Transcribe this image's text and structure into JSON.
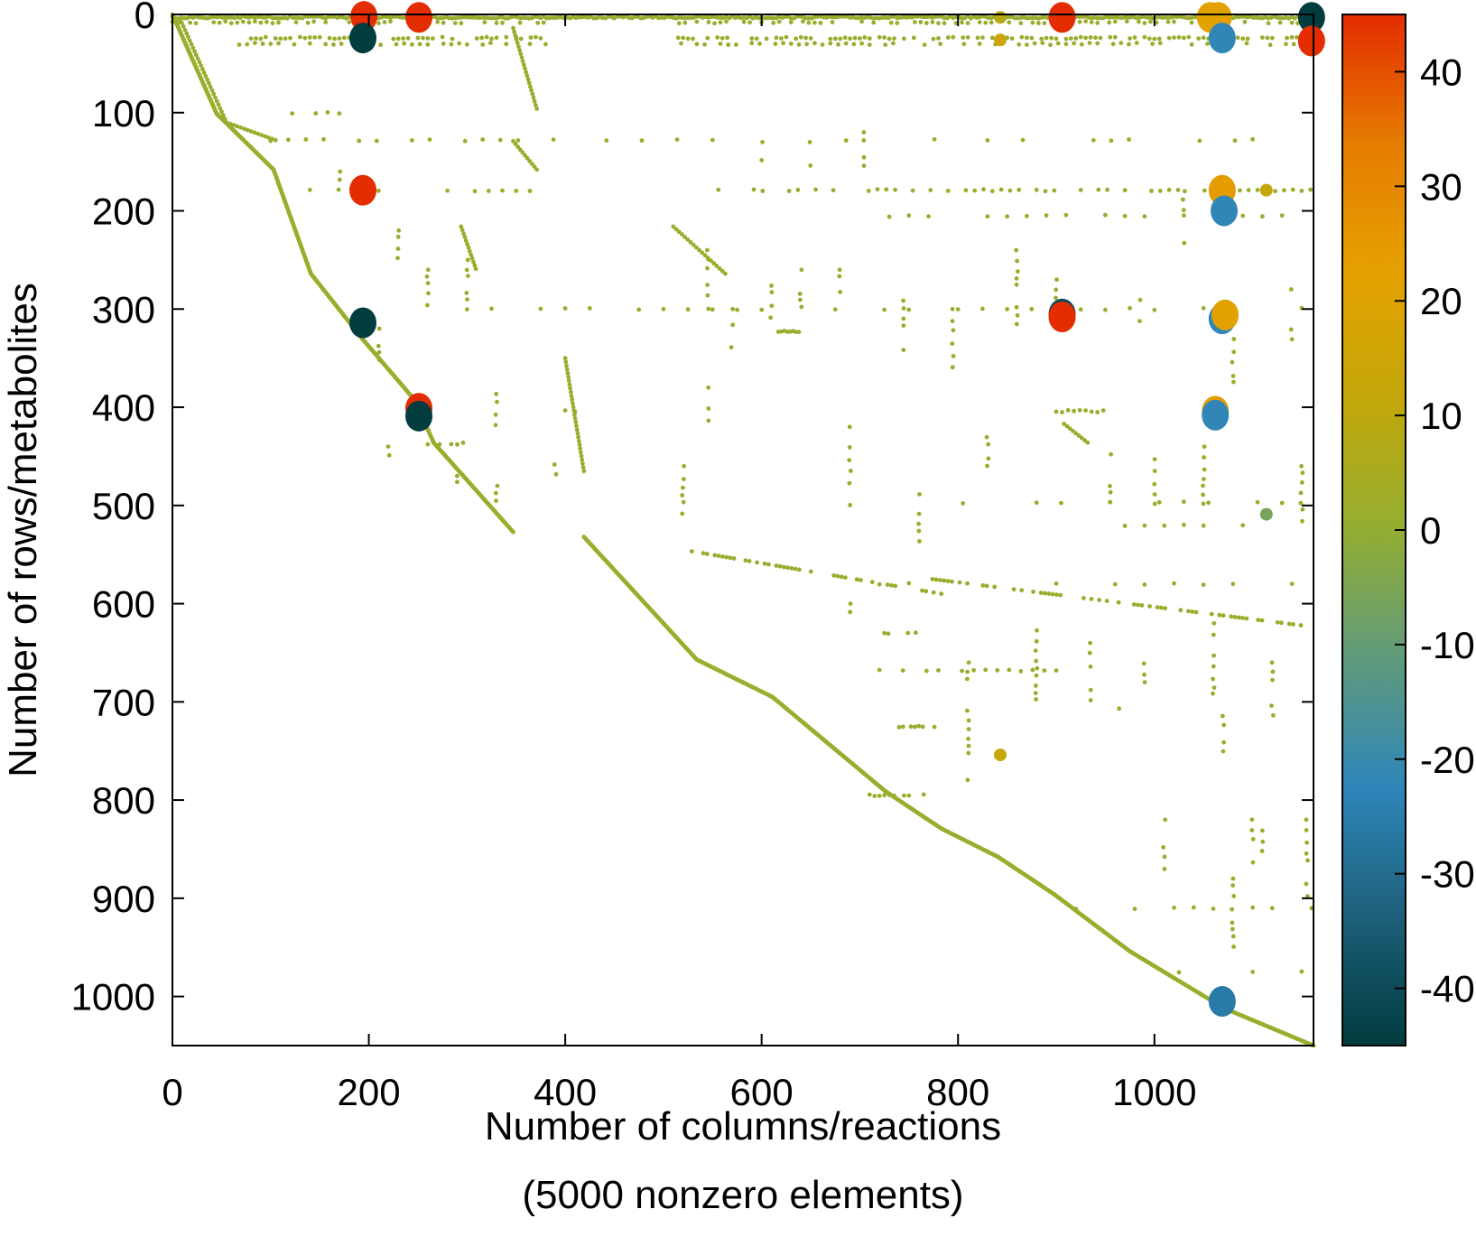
{
  "chart_data": {
    "type": "scatter",
    "subtype": "sparsity-pattern",
    "title": "",
    "xlabel": "Number of columns/reactions",
    "xlabel_line2": "(5000 nonzero elements)",
    "ylabel": "Number of rows/metabolites",
    "xlim": [
      0,
      1162
    ],
    "ylim": [
      1050,
      0
    ],
    "y_reversed": true,
    "x_ticks": [
      0,
      200,
      400,
      600,
      800,
      1000
    ],
    "y_ticks": [
      0,
      100,
      200,
      300,
      400,
      500,
      600,
      700,
      800,
      900,
      1000
    ],
    "grid": false,
    "colorbar": {
      "position": "right",
      "clim": [
        -45,
        45
      ],
      "ticks": [
        40,
        30,
        20,
        10,
        0,
        -10,
        -20,
        -30,
        -40
      ],
      "colormap": [
        "#013c3f",
        "#1d5f79",
        "#2e86ba",
        "#5f9a7c",
        "#93ae33",
        "#c2a70a",
        "#e5a100",
        "#e57c00",
        "#e32c00"
      ]
    },
    "small_dot_color": "#9aad2d",
    "diagonal_knots": [
      [
        0,
        0
      ],
      [
        45,
        101
      ],
      [
        103,
        158
      ],
      [
        141,
        264
      ],
      [
        194,
        331
      ],
      [
        247,
        393
      ],
      [
        266,
        436
      ],
      [
        347,
        527
      ],
      null,
      [
        419,
        532
      ],
      [
        534,
        657
      ],
      [
        611,
        695
      ],
      [
        726,
        791
      ],
      [
        783,
        829
      ],
      [
        841,
        858
      ],
      [
        898,
        896
      ],
      [
        975,
        954
      ],
      [
        1071,
        1012
      ],
      [
        1162,
        1050
      ]
    ],
    "line_segments": [
      [
        [
          8,
          5
        ],
        [
          55,
          110
        ],
        [
          105,
          128
        ]
      ],
      [
        [
          347,
          14
        ],
        [
          371,
          96
        ]
      ],
      [
        [
          347,
          129
        ],
        [
          371,
          158
        ]
      ],
      [
        [
          400,
          350
        ],
        [
          419,
          465
        ]
      ],
      [
        [
          510,
          216
        ],
        [
          563,
          264
        ]
      ],
      [
        [
          294,
          216
        ],
        [
          309,
          259
        ]
      ],
      [
        [
          908,
          417
        ],
        [
          932,
          436
        ]
      ],
      [
        [
          525,
          546
        ],
        [
          783,
          590
        ]
      ],
      [
        [
          774,
          575
        ],
        [
          1157,
          623
        ]
      ]
    ],
    "row_bands": [
      [
        3,
        0,
        1162,
        3
      ],
      [
        8,
        0,
        380,
        6
      ],
      [
        8,
        510,
        1162,
        6
      ],
      [
        24,
        70,
        375,
        5
      ],
      [
        24,
        510,
        1162,
        5
      ],
      [
        30,
        60,
        380,
        8
      ],
      [
        30,
        510,
        1162,
        8
      ],
      [
        100,
        110,
        180,
        12
      ],
      [
        128,
        100,
        600,
        18
      ],
      [
        128,
        650,
        1100,
        18
      ],
      [
        179,
        140,
        370,
        14
      ],
      [
        179,
        520,
        1160,
        9
      ],
      [
        205,
        730,
        1160,
        20
      ],
      [
        300,
        300,
        1160,
        25
      ],
      [
        323,
        617,
        640,
        3
      ],
      [
        404,
        400,
        420,
        10
      ],
      [
        404,
        900,
        950,
        6
      ],
      [
        437,
        260,
        300,
        6
      ],
      [
        497,
        780,
        1160,
        25
      ],
      [
        520,
        930,
        1120,
        20
      ],
      [
        580,
        720,
        1160,
        30
      ],
      [
        630,
        725,
        760,
        4
      ],
      [
        668,
        720,
        900,
        12
      ],
      [
        725,
        740,
        780,
        4
      ],
      [
        795,
        710,
        765,
        5
      ],
      [
        910,
        900,
        1160,
        20
      ],
      [
        975,
        1000,
        1160,
        25
      ]
    ],
    "column_runs": [
      [
        520,
        460,
        510
      ],
      [
        545,
        240,
        300
      ],
      [
        610,
        250,
        320
      ],
      [
        640,
        260,
        300
      ],
      [
        680,
        260,
        300
      ],
      [
        690,
        420,
        500
      ],
      [
        705,
        120,
        160
      ],
      [
        745,
        280,
        350
      ],
      [
        760,
        480,
        540
      ],
      [
        795,
        300,
        380
      ],
      [
        810,
        660,
        790
      ],
      [
        830,
        420,
        480
      ],
      [
        860,
        240,
        320
      ],
      [
        880,
        620,
        700
      ],
      [
        900,
        270,
        320
      ],
      [
        935,
        640,
        700
      ],
      [
        955,
        430,
        500
      ],
      [
        965,
        700,
        760
      ],
      [
        985,
        280,
        320
      ],
      [
        990,
        640,
        690
      ],
      [
        1000,
        440,
        520
      ],
      [
        1010,
        820,
        880
      ],
      [
        1030,
        180,
        260
      ],
      [
        1050,
        440,
        500
      ],
      [
        1060,
        620,
        700
      ],
      [
        1080,
        300,
        380
      ],
      [
        1100,
        820,
        880
      ],
      [
        1120,
        660,
        720
      ],
      [
        1140,
        280,
        340
      ],
      [
        1150,
        460,
        520
      ],
      [
        1155,
        820,
        900
      ],
      [
        390,
        430,
        470
      ],
      [
        330,
        380,
        420
      ],
      [
        300,
        250,
        300
      ],
      [
        260,
        260,
        300
      ],
      [
        230,
        220,
        260
      ],
      [
        210,
        320,
        360
      ],
      [
        220,
        440,
        460
      ],
      [
        290,
        470,
        500
      ],
      [
        330,
        480,
        500
      ],
      [
        170,
        160,
        200
      ],
      [
        545,
        380,
        420
      ],
      [
        570,
        300,
        340
      ],
      [
        600,
        130,
        160
      ],
      [
        650,
        130,
        160
      ],
      [
        690,
        600,
        650
      ],
      [
        1080,
        880,
        960
      ],
      [
        1070,
        700,
        760
      ],
      [
        1110,
        800,
        860
      ]
    ],
    "large_values": [
      {
        "col": 195,
        "row": 2,
        "value": 45
      },
      {
        "col": 251,
        "row": 3,
        "value": 45
      },
      {
        "col": 194,
        "row": 24,
        "value": -45
      },
      {
        "col": 194,
        "row": 179,
        "value": 45
      },
      {
        "col": 194,
        "row": 314,
        "value": -45
      },
      {
        "col": 251,
        "row": 401,
        "value": 45
      },
      {
        "col": 251,
        "row": 409,
        "value": -45
      },
      {
        "col": 843,
        "row": 3,
        "value": 8,
        "small": true
      },
      {
        "col": 843,
        "row": 26,
        "value": 14,
        "small": true
      },
      {
        "col": 906,
        "row": 3,
        "value": 45
      },
      {
        "col": 906,
        "row": 305,
        "value": -40
      },
      {
        "col": 906,
        "row": 308,
        "value": 45
      },
      {
        "col": 1057,
        "row": 3,
        "value": 22
      },
      {
        "col": 1065,
        "row": 3,
        "value": 22
      },
      {
        "col": 1069,
        "row": 24,
        "value": -22
      },
      {
        "col": 1069,
        "row": 179,
        "value": 24
      },
      {
        "col": 1071,
        "row": 200,
        "value": -22
      },
      {
        "col": 1069,
        "row": 310,
        "value": -22
      },
      {
        "col": 1072,
        "row": 306,
        "value": 22
      },
      {
        "col": 1062,
        "row": 404,
        "value": 24
      },
      {
        "col": 1062,
        "row": 408,
        "value": -22
      },
      {
        "col": 843,
        "row": 754,
        "value": 12,
        "small": true
      },
      {
        "col": 1114,
        "row": 509,
        "value": -6,
        "small": true
      },
      {
        "col": 1114,
        "row": 179,
        "value": 12,
        "small": true
      },
      {
        "col": 1069,
        "row": 1005,
        "value": -26
      },
      {
        "col": 1160,
        "row": 3,
        "value": -45
      },
      {
        "col": 1160,
        "row": 27,
        "value": 45
      }
    ]
  }
}
